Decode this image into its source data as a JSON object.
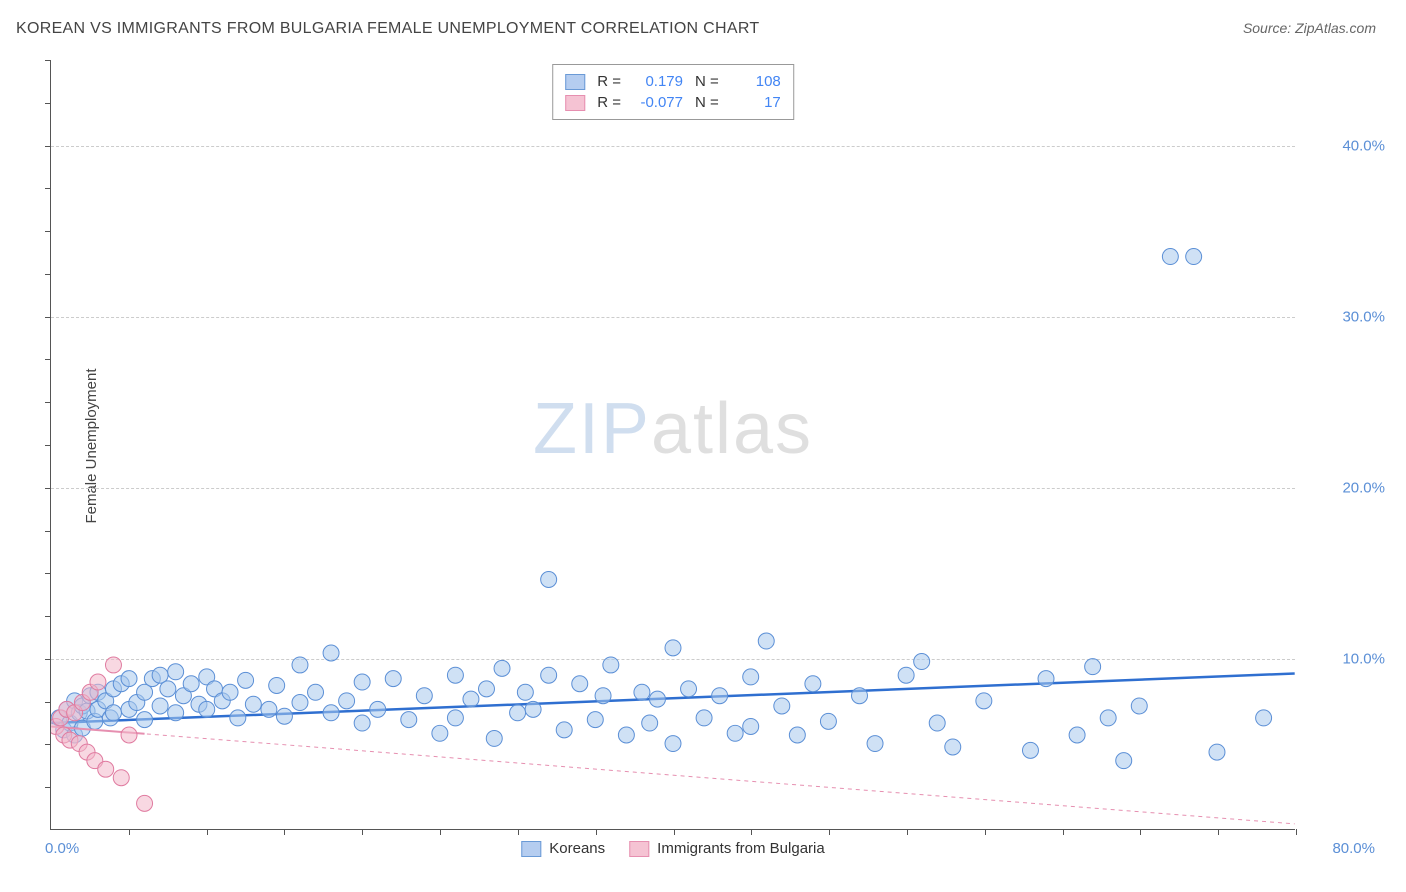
{
  "header": {
    "title": "KOREAN VS IMMIGRANTS FROM BULGARIA FEMALE UNEMPLOYMENT CORRELATION CHART",
    "source": "Source: ZipAtlas.com"
  },
  "watermark": {
    "part1": "ZIP",
    "part2": "atlas"
  },
  "y_axis": {
    "title": "Female Unemployment",
    "ticks": [
      {
        "value": 10.0,
        "label": "10.0%"
      },
      {
        "value": 20.0,
        "label": "20.0%"
      },
      {
        "value": 30.0,
        "label": "30.0%"
      },
      {
        "value": 40.0,
        "label": "40.0%"
      }
    ],
    "ylim": [
      0,
      45
    ]
  },
  "x_axis": {
    "label_left": "0.0%",
    "label_right": "80.0%",
    "xlim": [
      0,
      80
    ],
    "tick_step": 5
  },
  "legend_top": {
    "rows": [
      {
        "color_fill": "#b5cdf0",
        "color_border": "#6a9ad6",
        "r_label": "R =",
        "r_value": "0.179",
        "n_label": "N =",
        "n_value": "108"
      },
      {
        "color_fill": "#f5c3d3",
        "color_border": "#e68fb0",
        "r_label": "R =",
        "r_value": "-0.077",
        "n_label": "N =",
        "n_value": "17"
      }
    ]
  },
  "legend_bottom": {
    "items": [
      {
        "color_fill": "#b5cdf0",
        "color_border": "#6a9ad6",
        "label": "Koreans"
      },
      {
        "color_fill": "#f5c3d3",
        "color_border": "#e68fb0",
        "label": "Immigrants from Bulgaria"
      }
    ]
  },
  "chart": {
    "type": "scatter",
    "background_color": "#ffffff",
    "grid_color": "#cccccc",
    "marker_radius": 8,
    "marker_opacity": 0.55,
    "series": [
      {
        "name": "Koreans",
        "fill": "#a8c8ed",
        "stroke": "#5b8fd6",
        "trend": {
          "type": "solid",
          "color": "#2f6fd0",
          "width": 2.5,
          "y_at_x0": 6.2,
          "y_at_xmax": 9.1
        },
        "points": [
          [
            0.5,
            6.5
          ],
          [
            0.8,
            5.8
          ],
          [
            1.0,
            7.0
          ],
          [
            1.2,
            6.2
          ],
          [
            1.5,
            7.5
          ],
          [
            1.5,
            5.5
          ],
          [
            1.8,
            6.8
          ],
          [
            2.0,
            7.2
          ],
          [
            2.0,
            5.9
          ],
          [
            2.3,
            6.9
          ],
          [
            2.5,
            7.8
          ],
          [
            2.8,
            6.3
          ],
          [
            3.0,
            7.0
          ],
          [
            3.0,
            8.0
          ],
          [
            3.5,
            7.5
          ],
          [
            3.8,
            6.5
          ],
          [
            4.0,
            8.2
          ],
          [
            4.0,
            6.8
          ],
          [
            4.5,
            8.5
          ],
          [
            5.0,
            7.0
          ],
          [
            5.0,
            8.8
          ],
          [
            5.5,
            7.4
          ],
          [
            6.0,
            8.0
          ],
          [
            6.0,
            6.4
          ],
          [
            6.5,
            8.8
          ],
          [
            7.0,
            9.0
          ],
          [
            7.0,
            7.2
          ],
          [
            7.5,
            8.2
          ],
          [
            8.0,
            6.8
          ],
          [
            8.0,
            9.2
          ],
          [
            8.5,
            7.8
          ],
          [
            9.0,
            8.5
          ],
          [
            9.5,
            7.3
          ],
          [
            10.0,
            8.9
          ],
          [
            10.0,
            7.0
          ],
          [
            10.5,
            8.2
          ],
          [
            11.0,
            7.5
          ],
          [
            11.5,
            8.0
          ],
          [
            12.0,
            6.5
          ],
          [
            12.5,
            8.7
          ],
          [
            13.0,
            7.3
          ],
          [
            14.0,
            7.0
          ],
          [
            14.5,
            8.4
          ],
          [
            15.0,
            6.6
          ],
          [
            16.0,
            9.6
          ],
          [
            16.0,
            7.4
          ],
          [
            17.0,
            8.0
          ],
          [
            18.0,
            6.8
          ],
          [
            18.0,
            10.3
          ],
          [
            19.0,
            7.5
          ],
          [
            20.0,
            6.2
          ],
          [
            20.0,
            8.6
          ],
          [
            21.0,
            7.0
          ],
          [
            22.0,
            8.8
          ],
          [
            23.0,
            6.4
          ],
          [
            24.0,
            7.8
          ],
          [
            25.0,
            5.6
          ],
          [
            26.0,
            9.0
          ],
          [
            26.0,
            6.5
          ],
          [
            27.0,
            7.6
          ],
          [
            28.0,
            8.2
          ],
          [
            28.5,
            5.3
          ],
          [
            29.0,
            9.4
          ],
          [
            30.0,
            6.8
          ],
          [
            30.5,
            8.0
          ],
          [
            31.0,
            7.0
          ],
          [
            32.0,
            9.0
          ],
          [
            32.0,
            14.6
          ],
          [
            33.0,
            5.8
          ],
          [
            34.0,
            8.5
          ],
          [
            35.0,
            6.4
          ],
          [
            35.5,
            7.8
          ],
          [
            36.0,
            9.6
          ],
          [
            37.0,
            5.5
          ],
          [
            38.0,
            8.0
          ],
          [
            38.5,
            6.2
          ],
          [
            39.0,
            7.6
          ],
          [
            40.0,
            10.6
          ],
          [
            40.0,
            5.0
          ],
          [
            41.0,
            8.2
          ],
          [
            42.0,
            6.5
          ],
          [
            43.0,
            7.8
          ],
          [
            44.0,
            5.6
          ],
          [
            45.0,
            8.9
          ],
          [
            45.0,
            6.0
          ],
          [
            46.0,
            11.0
          ],
          [
            47.0,
            7.2
          ],
          [
            48.0,
            5.5
          ],
          [
            49.0,
            8.5
          ],
          [
            50.0,
            6.3
          ],
          [
            52.0,
            7.8
          ],
          [
            53.0,
            5.0
          ],
          [
            55.0,
            9.0
          ],
          [
            56.0,
            9.8
          ],
          [
            58.0,
            4.8
          ],
          [
            60.0,
            7.5
          ],
          [
            63.0,
            4.6
          ],
          [
            64.0,
            8.8
          ],
          [
            66.0,
            5.5
          ],
          [
            67.0,
            9.5
          ],
          [
            69.0,
            4.0
          ],
          [
            70.0,
            7.2
          ],
          [
            72.0,
            33.5
          ],
          [
            73.5,
            33.5
          ],
          [
            75.0,
            4.5
          ],
          [
            78.0,
            6.5
          ],
          [
            68.0,
            6.5
          ],
          [
            57.0,
            6.2
          ]
        ]
      },
      {
        "name": "Immigrants from Bulgaria",
        "fill": "#f2b8ca",
        "stroke": "#e07ba0",
        "trend": {
          "type": "dashed",
          "color": "#e68fb0",
          "width": 1,
          "y_at_x0": 6.0,
          "y_at_xmax": 0.3
        },
        "trend_solid_segment": {
          "x_end": 6,
          "color": "#e68fb0",
          "width": 2
        },
        "points": [
          [
            0.3,
            6.0
          ],
          [
            0.6,
            6.5
          ],
          [
            0.8,
            5.5
          ],
          [
            1.0,
            7.0
          ],
          [
            1.2,
            5.2
          ],
          [
            1.5,
            6.8
          ],
          [
            1.8,
            5.0
          ],
          [
            2.0,
            7.4
          ],
          [
            2.3,
            4.5
          ],
          [
            2.5,
            8.0
          ],
          [
            2.8,
            4.0
          ],
          [
            3.0,
            8.6
          ],
          [
            3.5,
            3.5
          ],
          [
            4.0,
            9.6
          ],
          [
            4.5,
            3.0
          ],
          [
            5.0,
            5.5
          ],
          [
            6.0,
            1.5
          ]
        ]
      }
    ]
  }
}
